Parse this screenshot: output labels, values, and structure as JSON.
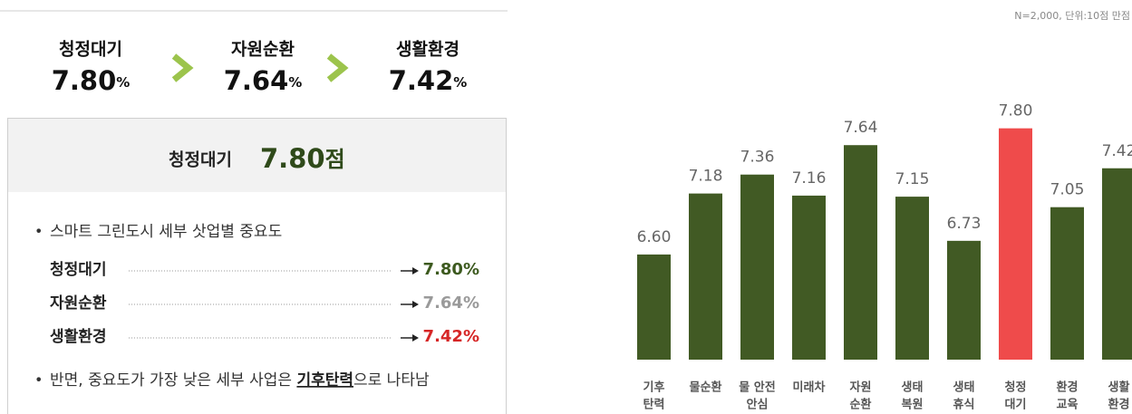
{
  "flow": [
    {
      "label": "청정대기",
      "value": "7.80",
      "unit": "%"
    },
    {
      "label": "자원순환",
      "value": "7.64",
      "unit": "%"
    },
    {
      "label": "생활환경",
      "value": "7.42",
      "unit": "%"
    }
  ],
  "box": {
    "title": "청정대기",
    "value": "7.80",
    "unit": "점",
    "bullet1": "스마트 그린도시 세부 삿업별 중요도",
    "rows": [
      {
        "name": "청정대기",
        "value": "7.80%",
        "color": "#3d5a1f"
      },
      {
        "name": "자원순환",
        "value": "7.64%",
        "color": "#9a9a9a"
      },
      {
        "name": "생활환경",
        "value": "7.42%",
        "color": "#d62626"
      }
    ],
    "bullet2": {
      "before": "반면, 중요도가 가장 낮은 세부 사업은 ",
      "emphasis": "기후탄력",
      "after": "으로 나타남"
    }
  },
  "chart_data": {
    "type": "bar",
    "note": "N=2,000, 단위:10점 만점",
    "categories": [
      [
        "기후",
        "탄력"
      ],
      [
        "물순환"
      ],
      [
        "물 안전",
        "안심"
      ],
      [
        "미래차"
      ],
      [
        "자원",
        "순환"
      ],
      [
        "생태",
        "복원"
      ],
      [
        "생태",
        "휴식"
      ],
      [
        "청정",
        "대기"
      ],
      [
        "환경",
        "교육"
      ],
      [
        "생활",
        "환경"
      ]
    ],
    "values": [
      6.6,
      7.18,
      7.36,
      7.16,
      7.64,
      7.15,
      6.73,
      7.8,
      7.05,
      7.42
    ],
    "value_labels": [
      "6.60",
      "7.18",
      "7.36",
      "7.16",
      "7.64",
      "7.15",
      "6.73",
      "7.80",
      "7.05",
      "7.42"
    ],
    "colors": [
      "#415a24",
      "#415a24",
      "#415a24",
      "#415a24",
      "#415a24",
      "#415a24",
      "#415a24",
      "#ef4b4b",
      "#415a24",
      "#415a24"
    ],
    "ylim": [
      5.6,
      8.4
    ]
  }
}
